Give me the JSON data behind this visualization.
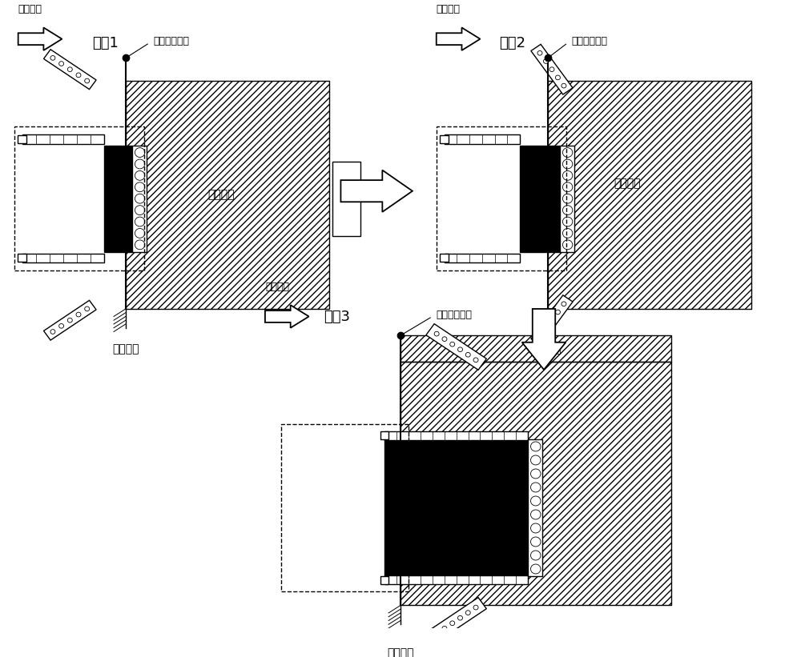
{
  "stage1_label": "阶况1",
  "stage2_label": "阶况2",
  "stage3_label": "阶况3",
  "forward_dir": "前进方向",
  "spray_start": "喷洒搅铺开始",
  "road_surface": "待铺路面",
  "road_joint": "路面接缝",
  "bg_color": "#ffffff",
  "line_color": "#000000"
}
